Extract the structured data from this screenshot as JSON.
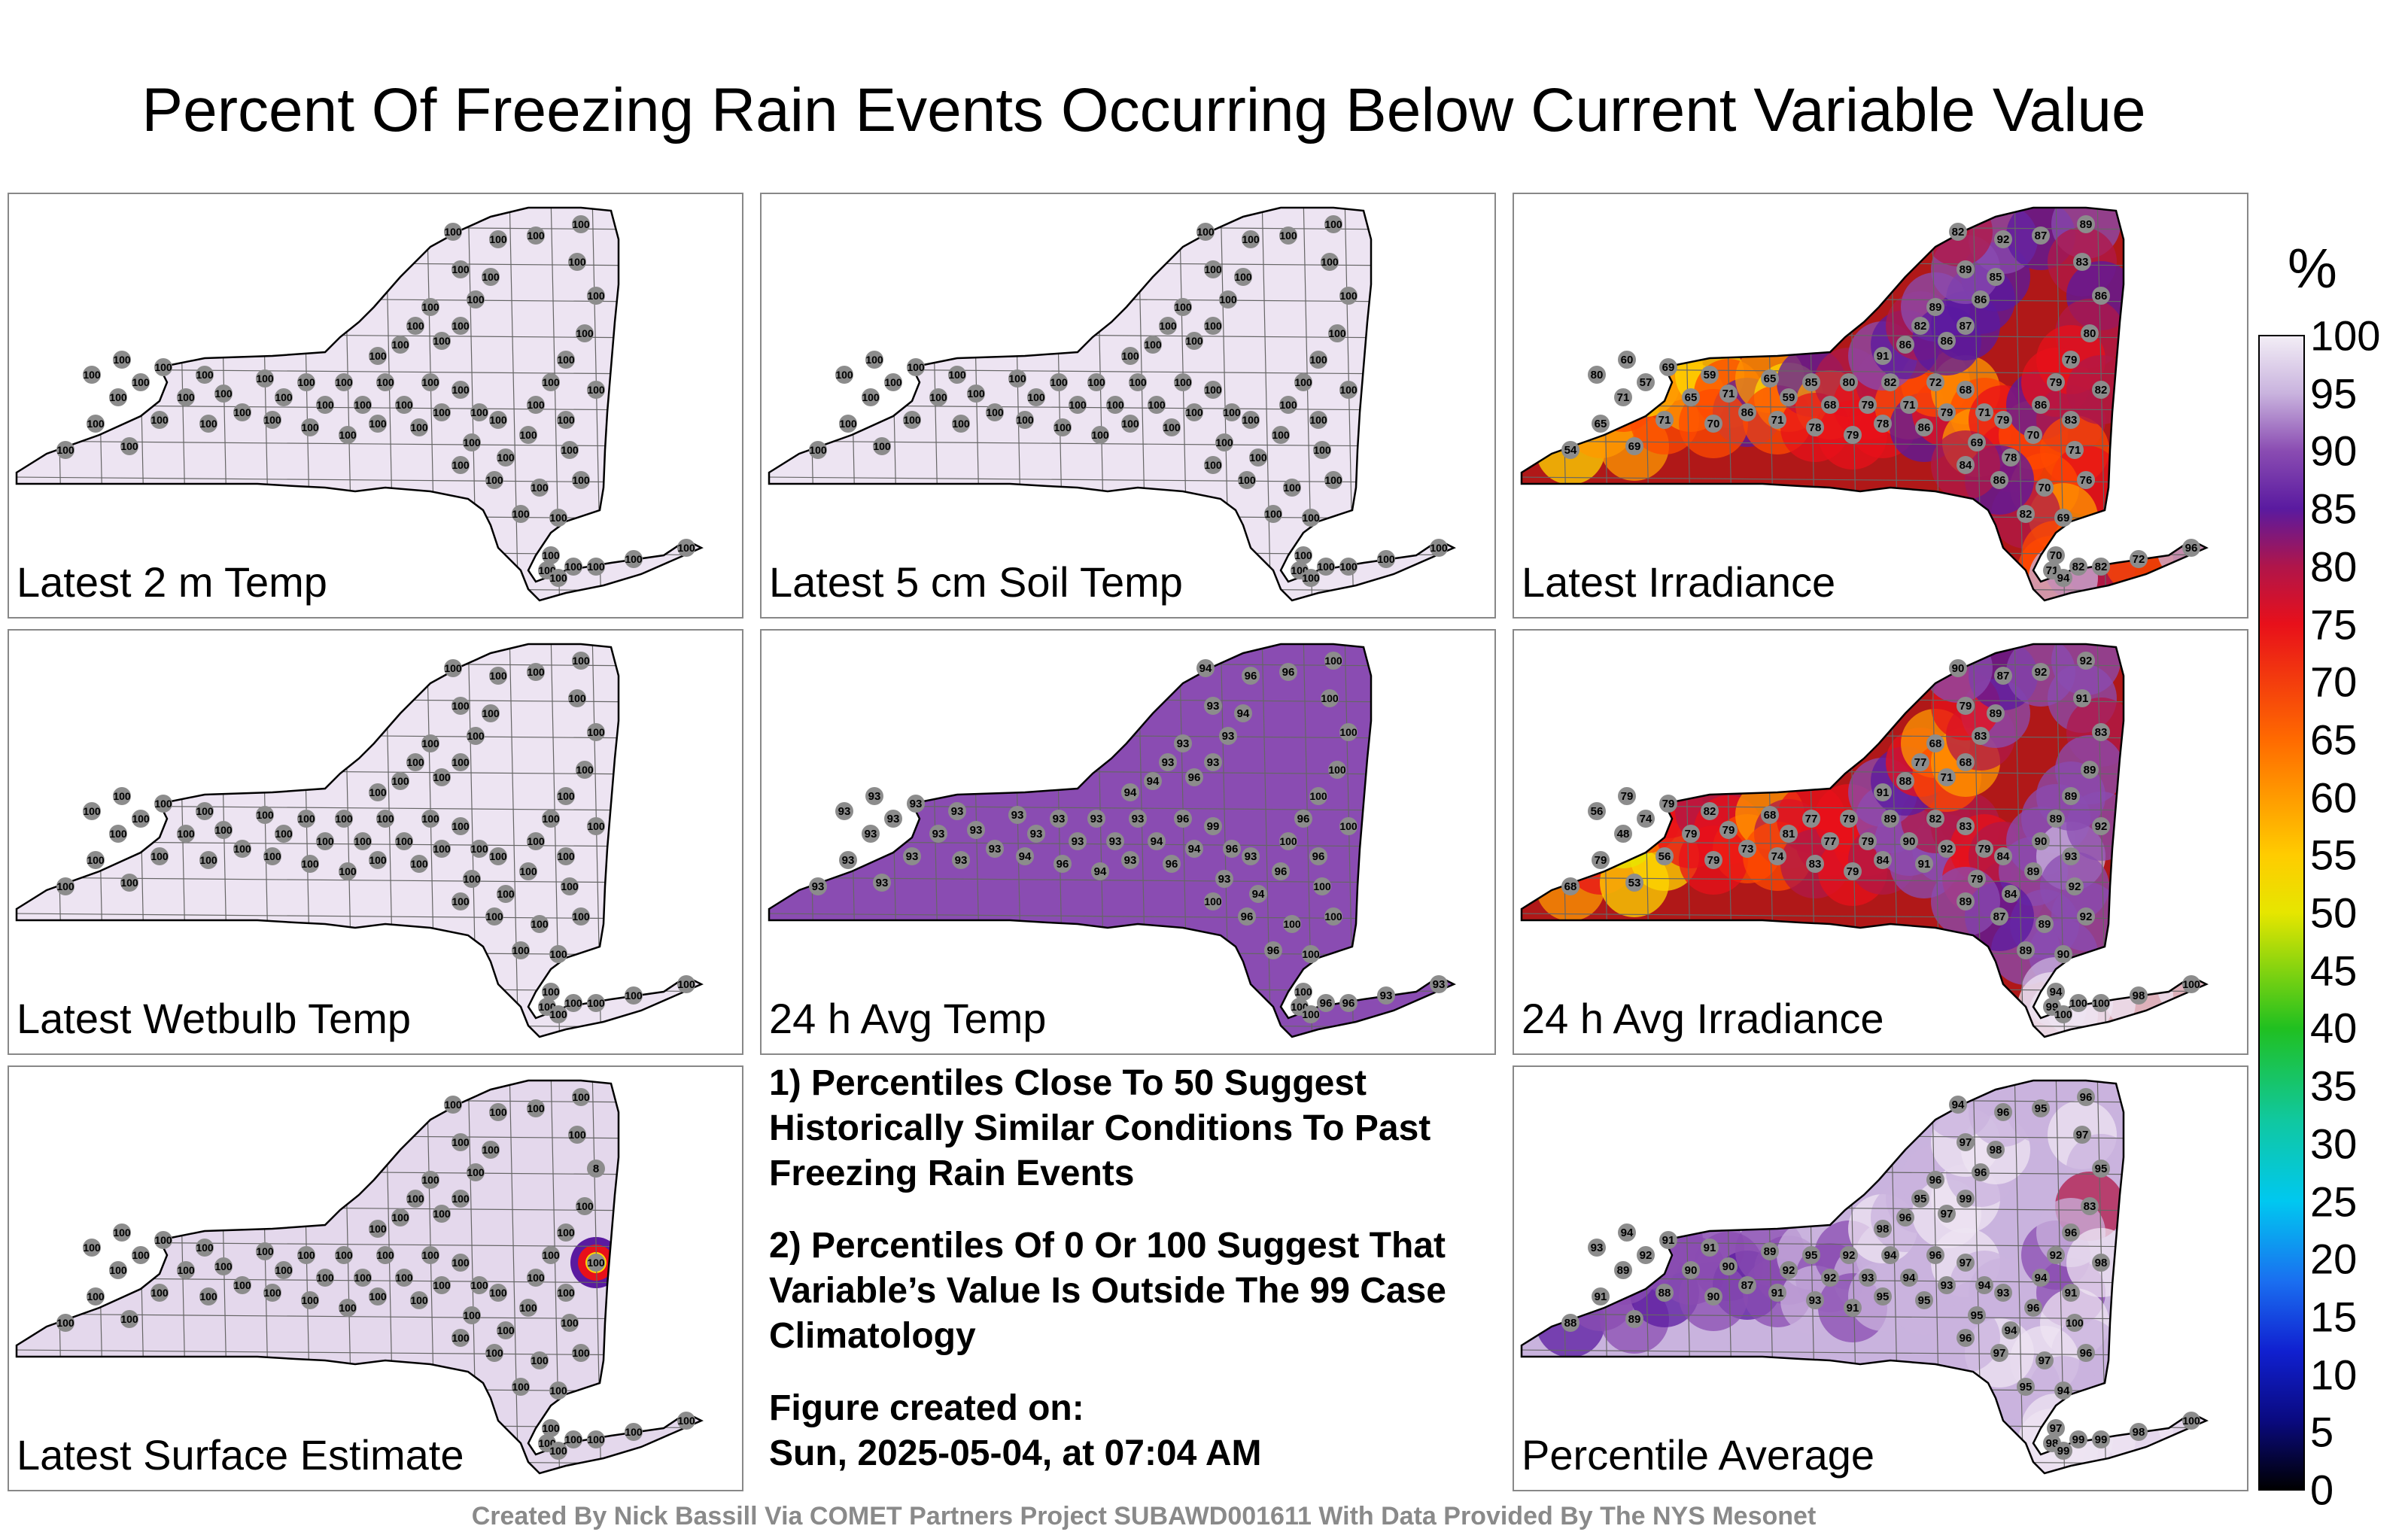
{
  "title": "Percent Of Freezing Rain Events Occurring Below Current Variable Value",
  "colorbar": {
    "unit": "%",
    "ticks": [
      "100",
      "95",
      "90",
      "85",
      "80",
      "75",
      "70",
      "65",
      "60",
      "55",
      "50",
      "45",
      "40",
      "35",
      "30",
      "25",
      "20",
      "15",
      "10",
      "5",
      "0"
    ]
  },
  "panels": [
    {
      "id": "p1",
      "label": "Latest 2 m Temp",
      "fill": "#ede4f2",
      "hotspot": "none",
      "values": [
        100,
        100,
        100,
        100,
        100,
        100,
        100,
        100,
        100,
        100,
        100,
        100,
        100,
        100,
        100,
        100,
        100,
        100,
        100,
        100,
        100,
        100,
        100,
        100,
        100,
        100,
        100,
        100,
        100,
        100,
        100,
        100,
        100,
        100,
        100,
        100,
        100,
        100,
        100,
        100,
        100,
        100,
        100,
        100,
        100,
        100,
        100,
        100,
        100,
        100,
        100,
        100,
        100,
        100,
        100,
        100,
        100,
        100,
        100,
        100,
        100,
        100,
        100,
        100,
        100,
        100,
        100,
        100,
        100,
        100
      ]
    },
    {
      "id": "p2",
      "label": "Latest 5 cm Soil Temp",
      "fill": "#ede4f2",
      "hotspot": "none",
      "values": [
        100,
        100,
        100,
        100,
        100,
        100,
        100,
        100,
        100,
        100,
        100,
        100,
        100,
        100,
        100,
        100,
        100,
        100,
        100,
        100,
        100,
        100,
        100,
        100,
        100,
        100,
        100,
        100,
        100,
        100,
        100,
        100,
        100,
        100,
        100,
        100,
        100,
        100,
        100,
        100,
        100,
        100,
        100,
        100,
        100,
        100,
        100,
        100,
        100,
        100,
        100,
        100,
        100,
        100,
        100,
        100,
        100,
        100,
        100,
        100,
        100,
        100,
        100,
        100,
        100,
        100,
        100,
        100,
        100,
        100
      ]
    },
    {
      "id": "p3",
      "label": "Latest Irradiance",
      "fill": "#b01818",
      "hotspot": "irr",
      "values": [
        54,
        65,
        69,
        71,
        71,
        80,
        57,
        60,
        69,
        65,
        59,
        71,
        86,
        70,
        65,
        59,
        71,
        85,
        68,
        78,
        80,
        79,
        79,
        78,
        82,
        71,
        86,
        79,
        72,
        68,
        71,
        69,
        79,
        78,
        70,
        86,
        79,
        83,
        71,
        76,
        70,
        69,
        82,
        86,
        84,
        91,
        86,
        82,
        89,
        86,
        87,
        86,
        85,
        89,
        92,
        82,
        87,
        89,
        83,
        86,
        80,
        79,
        82,
        70,
        71,
        82,
        82,
        72,
        96,
        94
      ]
    },
    {
      "id": "p4",
      "label": "Latest Wetbulb Temp",
      "fill": "#ede4f2",
      "hotspot": "none",
      "values": [
        100,
        100,
        100,
        100,
        100,
        100,
        100,
        100,
        100,
        100,
        100,
        100,
        100,
        100,
        100,
        100,
        100,
        100,
        100,
        100,
        100,
        100,
        100,
        100,
        100,
        100,
        100,
        100,
        100,
        100,
        100,
        100,
        100,
        100,
        100,
        100,
        100,
        100,
        100,
        100,
        100,
        100,
        100,
        100,
        100,
        100,
        100,
        100,
        100,
        100,
        100,
        100,
        100,
        100,
        100,
        100,
        100,
        100,
        100,
        100,
        100,
        100,
        100,
        100,
        100,
        100,
        100,
        100,
        100,
        100
      ]
    },
    {
      "id": "p5",
      "label": "24 h Avg Temp",
      "fill": "#8a4cb2",
      "hotspot": "none",
      "values": [
        93,
        93,
        93,
        93,
        93,
        93,
        93,
        93,
        93,
        93,
        93,
        93,
        93,
        93,
        93,
        93,
        94,
        93,
        93,
        96,
        93,
        93,
        94,
        93,
        93,
        94,
        96,
        94,
        96,
        99,
        96,
        93,
        93,
        94,
        96,
        100,
        96,
        96,
        100,
        100,
        100,
        100,
        96,
        96,
        100,
        94,
        94,
        93,
        93,
        96,
        93,
        93,
        94,
        93,
        96,
        94,
        96,
        100,
        100,
        100,
        100,
        100,
        100,
        100,
        100,
        96,
        96,
        93,
        93,
        100
      ]
    },
    {
      "id": "p6",
      "label": "24 h Avg Irradiance",
      "fill": "#b01818",
      "hotspot": "irr",
      "values": [
        68,
        79,
        53,
        56,
        48,
        56,
        74,
        79,
        79,
        79,
        82,
        79,
        73,
        79,
        68,
        81,
        74,
        77,
        77,
        83,
        79,
        79,
        79,
        84,
        89,
        90,
        91,
        92,
        82,
        83,
        79,
        79,
        84,
        84,
        89,
        90,
        89,
        93,
        92,
        92,
        89,
        90,
        89,
        87,
        89,
        91,
        88,
        77,
        68,
        71,
        68,
        83,
        89,
        79,
        87,
        90,
        92,
        92,
        91,
        83,
        89,
        89,
        92,
        94,
        99,
        100,
        100,
        98,
        100,
        100
      ]
    },
    {
      "id": "p7",
      "label": "Latest Surface Estimate",
      "fill": "#e4d8ec",
      "hotspot": "surf",
      "values": [
        100,
        100,
        100,
        100,
        100,
        100,
        100,
        100,
        100,
        100,
        100,
        100,
        100,
        100,
        100,
        100,
        100,
        100,
        100,
        100,
        100,
        100,
        100,
        100,
        100,
        100,
        100,
        100,
        100,
        100,
        100,
        100,
        100,
        100,
        100,
        100,
        100,
        100,
        100,
        100,
        100,
        100,
        100,
        100,
        100,
        100,
        100,
        100,
        100,
        100,
        100,
        100,
        100,
        100,
        100,
        100,
        100,
        100,
        100,
        8,
        100,
        100,
        100,
        100,
        100,
        100,
        100,
        100,
        100,
        100
      ]
    },
    {
      "id": "p9",
      "label": "Percentile Average",
      "fill": "#c9b3de",
      "hotspot": "avg",
      "values": [
        88,
        91,
        89,
        88,
        89,
        93,
        92,
        94,
        91,
        90,
        91,
        90,
        87,
        90,
        89,
        92,
        91,
        95,
        92,
        93,
        92,
        93,
        91,
        95,
        94,
        94,
        95,
        93,
        96,
        97,
        94,
        95,
        93,
        94,
        96,
        94,
        92,
        91,
        100,
        96,
        97,
        94,
        95,
        97,
        96,
        98,
        96,
        95,
        96,
        97,
        99,
        96,
        98,
        97,
        96,
        94,
        95,
        96,
        97,
        95,
        83,
        96,
        98,
        97,
        98,
        99,
        99,
        98,
        100,
        99
      ]
    }
  ],
  "notes": [
    "1) Percentiles Close To 50 Suggest Historically Similar Conditions To Past Freezing Rain Events",
    "2) Percentiles Of 0 Or 100 Suggest That Variable’s Value Is Outside The 99 Case Climatology",
    "Figure created on:",
    "Sun, 2025-05-04, at 07:04 AM"
  ],
  "footer": "Created By Nick Bassill Via COMET Partners Project SUBAWD001611 With Data Provided By The NYS Mesonet",
  "colors": {
    "station_marker": "#8c8c8c",
    "irradiance_hot": "#ff8c00",
    "border": "#000000"
  }
}
